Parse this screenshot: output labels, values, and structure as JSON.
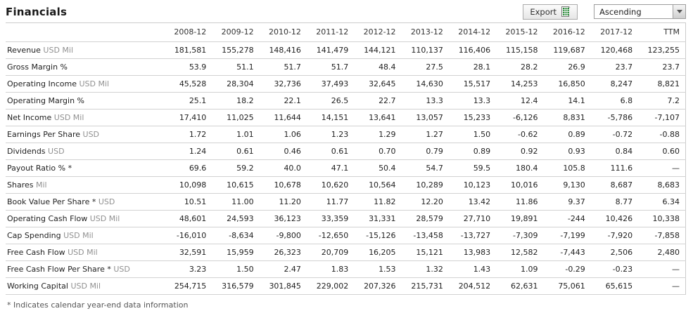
{
  "header": {
    "title": "Financials",
    "export_label": "Export",
    "sort_value": "Ascending"
  },
  "icons": {
    "export": "spreadsheet-icon",
    "sort": "chevron-down-icon"
  },
  "colors": {
    "spreadsheet_green": "#2e8b3d",
    "row_border": "#d2d2d2",
    "unit_text": "#909090"
  },
  "table": {
    "columns": [
      "2008-12",
      "2009-12",
      "2010-12",
      "2011-12",
      "2012-12",
      "2013-12",
      "2014-12",
      "2015-12",
      "2016-12",
      "2017-12",
      "TTM"
    ],
    "rows": [
      {
        "label": "Revenue",
        "unit": "USD Mil",
        "values": [
          "181,581",
          "155,278",
          "148,416",
          "141,479",
          "144,121",
          "110,137",
          "116,406",
          "115,158",
          "119,687",
          "120,468",
          "123,255"
        ]
      },
      {
        "label": "Gross Margin %",
        "unit": "",
        "values": [
          "53.9",
          "51.1",
          "51.7",
          "51.7",
          "48.4",
          "27.5",
          "28.1",
          "28.2",
          "26.9",
          "23.7",
          "23.7"
        ]
      },
      {
        "label": "Operating Income",
        "unit": "USD Mil",
        "values": [
          "45,528",
          "28,304",
          "32,736",
          "37,493",
          "32,645",
          "14,630",
          "15,517",
          "14,253",
          "16,850",
          "8,247",
          "8,821"
        ]
      },
      {
        "label": "Operating Margin %",
        "unit": "",
        "values": [
          "25.1",
          "18.2",
          "22.1",
          "26.5",
          "22.7",
          "13.3",
          "13.3",
          "12.4",
          "14.1",
          "6.8",
          "7.2"
        ]
      },
      {
        "label": "Net Income",
        "unit": "USD Mil",
        "values": [
          "17,410",
          "11,025",
          "11,644",
          "14,151",
          "13,641",
          "13,057",
          "15,233",
          "-6,126",
          "8,831",
          "-5,786",
          "-7,107"
        ]
      },
      {
        "label": "Earnings Per Share",
        "unit": "USD",
        "values": [
          "1.72",
          "1.01",
          "1.06",
          "1.23",
          "1.29",
          "1.27",
          "1.50",
          "-0.62",
          "0.89",
          "-0.72",
          "-0.88"
        ]
      },
      {
        "label": "Dividends",
        "unit": "USD",
        "values": [
          "1.24",
          "0.61",
          "0.46",
          "0.61",
          "0.70",
          "0.79",
          "0.89",
          "0.92",
          "0.93",
          "0.84",
          "0.60"
        ]
      },
      {
        "label": "Payout Ratio % *",
        "unit": "",
        "values": [
          "69.6",
          "59.2",
          "40.0",
          "47.1",
          "50.4",
          "54.7",
          "59.5",
          "180.4",
          "105.8",
          "111.6",
          "—"
        ]
      },
      {
        "label": "Shares",
        "unit": "Mil",
        "values": [
          "10,098",
          "10,615",
          "10,678",
          "10,620",
          "10,564",
          "10,289",
          "10,123",
          "10,016",
          "9,130",
          "8,687",
          "8,683"
        ]
      },
      {
        "label": "Book Value Per Share *",
        "unit": "USD",
        "values": [
          "10.51",
          "11.00",
          "11.20",
          "11.77",
          "11.82",
          "12.20",
          "13.42",
          "11.86",
          "9.37",
          "8.77",
          "6.34"
        ]
      },
      {
        "label": "Operating Cash Flow",
        "unit": "USD Mil",
        "values": [
          "48,601",
          "24,593",
          "36,123",
          "33,359",
          "31,331",
          "28,579",
          "27,710",
          "19,891",
          "-244",
          "10,426",
          "10,338"
        ]
      },
      {
        "label": "Cap Spending",
        "unit": "USD Mil",
        "values": [
          "-16,010",
          "-8,634",
          "-9,800",
          "-12,650",
          "-15,126",
          "-13,458",
          "-13,727",
          "-7,309",
          "-7,199",
          "-7,920",
          "-7,858"
        ]
      },
      {
        "label": "Free Cash Flow",
        "unit": "USD Mil",
        "values": [
          "32,591",
          "15,959",
          "26,323",
          "20,709",
          "16,205",
          "15,121",
          "13,983",
          "12,582",
          "-7,443",
          "2,506",
          "2,480"
        ]
      },
      {
        "label": "Free Cash Flow Per Share *",
        "unit": "USD",
        "values": [
          "3.23",
          "1.50",
          "2.47",
          "1.83",
          "1.53",
          "1.32",
          "1.43",
          "1.09",
          "-0.29",
          "-0.23",
          "—"
        ]
      },
      {
        "label": "Working Capital",
        "unit": "USD Mil",
        "values": [
          "254,715",
          "316,579",
          "301,845",
          "229,002",
          "207,326",
          "215,731",
          "204,512",
          "62,631",
          "75,061",
          "65,615",
          "—"
        ]
      }
    ]
  },
  "footnote": "* Indicates calendar year-end data information"
}
